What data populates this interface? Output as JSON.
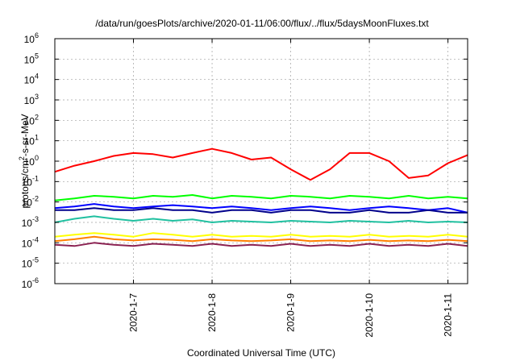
{
  "chart_data": {
    "type": "line",
    "title": "/data/run/goesPlots/archive/2020-01-11/06:00/flux/../flux/5daysMoonFluxes.txt",
    "xlabel": "Coordinated Universal Time (UTC)",
    "ylabel": {
      "base": "protons/cm",
      "sup": "2",
      "rest": "-s-sr-MeV"
    },
    "x_ticks": [
      "2020-1-7",
      "2020-1-8",
      "2020-1-9",
      "2020-1-10",
      "2020-1-11"
    ],
    "xlim": [
      "2020-01-06 00:00",
      "2020-01-11 06:00"
    ],
    "y_scale": "log",
    "ylim": [
      1e-06,
      1000000.0
    ],
    "y_ticks": [
      {
        "base": "10",
        "exp": "-6"
      },
      {
        "base": "10",
        "exp": "-5"
      },
      {
        "base": "10",
        "exp": "-4"
      },
      {
        "base": "10",
        "exp": "-3"
      },
      {
        "base": "10",
        "exp": "-2"
      },
      {
        "base": "10",
        "exp": "-1"
      },
      {
        "base": "10",
        "exp": "0"
      },
      {
        "base": "10",
        "exp": "1"
      },
      {
        "base": "10",
        "exp": "2"
      },
      {
        "base": "10",
        "exp": "3"
      },
      {
        "base": "10",
        "exp": "4"
      },
      {
        "base": "10",
        "exp": "5"
      },
      {
        "base": "10",
        "exp": "6"
      }
    ],
    "grid": true,
    "x": [
      "2020-01-06 00:00",
      "2020-01-06 06:00",
      "2020-01-06 12:00",
      "2020-01-06 18:00",
      "2020-01-07 00:00",
      "2020-01-07 06:00",
      "2020-01-07 12:00",
      "2020-01-07 18:00",
      "2020-01-08 00:00",
      "2020-01-08 06:00",
      "2020-01-08 12:00",
      "2020-01-08 18:00",
      "2020-01-09 00:00",
      "2020-01-09 06:00",
      "2020-01-09 12:00",
      "2020-01-09 18:00",
      "2020-01-10 00:00",
      "2020-01-10 06:00",
      "2020-01-10 12:00",
      "2020-01-10 18:00",
      "2020-01-11 00:00",
      "2020-01-11 06:00"
    ],
    "series": [
      {
        "color": "#ff0000",
        "values": [
          0.3,
          0.6,
          1.0,
          1.8,
          2.5,
          2.2,
          1.5,
          2.5,
          4.0,
          2.5,
          1.2,
          1.5,
          0.4,
          0.12,
          0.4,
          2.5,
          2.5,
          1.0,
          0.15,
          0.2,
          0.8,
          2.0
        ]
      },
      {
        "color": "#00ff00",
        "values": [
          0.012,
          0.015,
          0.02,
          0.018,
          0.015,
          0.02,
          0.018,
          0.022,
          0.015,
          0.02,
          0.018,
          0.015,
          0.02,
          0.018,
          0.015,
          0.02,
          0.018,
          0.015,
          0.02,
          0.015,
          0.018,
          0.015
        ]
      },
      {
        "color": "#0000ff",
        "values": [
          0.005,
          0.006,
          0.008,
          0.006,
          0.005,
          0.006,
          0.007,
          0.006,
          0.005,
          0.006,
          0.005,
          0.004,
          0.005,
          0.006,
          0.005,
          0.004,
          0.005,
          0.006,
          0.005,
          0.004,
          0.005,
          0.003
        ]
      },
      {
        "color": "#00008b",
        "values": [
          0.004,
          0.004,
          0.005,
          0.004,
          0.004,
          0.005,
          0.004,
          0.004,
          0.003,
          0.004,
          0.004,
          0.003,
          0.004,
          0.004,
          0.003,
          0.003,
          0.004,
          0.003,
          0.003,
          0.004,
          0.003,
          0.003
        ]
      },
      {
        "color": "#20c0a0",
        "values": [
          0.001,
          0.0015,
          0.002,
          0.0015,
          0.0012,
          0.0015,
          0.0012,
          0.0014,
          0.001,
          0.0012,
          0.0011,
          0.001,
          0.0012,
          0.0011,
          0.001,
          0.0012,
          0.0011,
          0.001,
          0.0012,
          0.001,
          0.0011,
          0.001
        ]
      },
      {
        "color": "#ffff00",
        "values": [
          0.0002,
          0.00025,
          0.0003,
          0.00025,
          0.0002,
          0.0003,
          0.00025,
          0.0002,
          0.00025,
          0.0002,
          0.00022,
          0.0002,
          0.00025,
          0.0002,
          0.00022,
          0.0002,
          0.00025,
          0.0002,
          0.00022,
          0.0002,
          0.00025,
          0.0002
        ]
      },
      {
        "color": "#ff8000",
        "values": [
          0.00012,
          0.00015,
          0.0002,
          0.00015,
          0.00013,
          0.00015,
          0.00014,
          0.00012,
          0.00015,
          0.00013,
          0.00012,
          0.00013,
          0.00015,
          0.00012,
          0.00013,
          0.00012,
          0.00014,
          0.00012,
          0.00013,
          0.00012,
          0.00014,
          0.00012
        ]
      },
      {
        "color": "#8b2252",
        "values": [
          8e-05,
          7e-05,
          0.0001,
          8e-05,
          7e-05,
          9e-05,
          8e-05,
          7e-05,
          9e-05,
          7e-05,
          8e-05,
          7e-05,
          9e-05,
          7e-05,
          8e-05,
          7e-05,
          9e-05,
          7e-05,
          8e-05,
          7e-05,
          9e-05,
          7e-05
        ]
      }
    ]
  }
}
